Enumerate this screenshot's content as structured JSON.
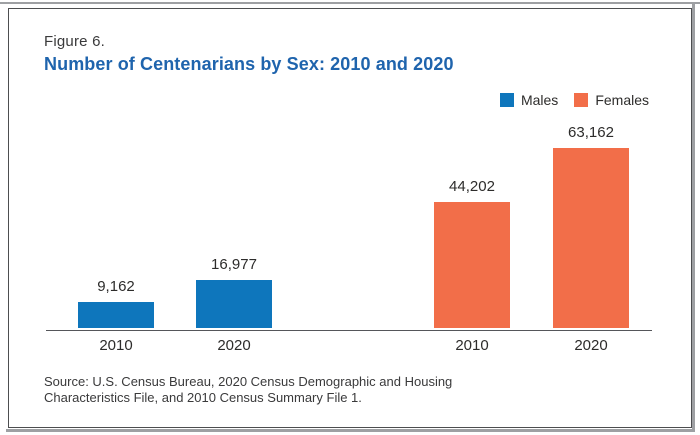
{
  "figure": {
    "label": "Figure 6.",
    "title": "Number of Centenarians by Sex: 2010 and 2020"
  },
  "colors": {
    "title_blue": "#1f64ad",
    "males_blue": "#0e76bc",
    "females_orange": "#f26e49",
    "axis_gray": "#55565a"
  },
  "chart_data": {
    "type": "bar",
    "title": "Number of Centenarians by Sex: 2010 and 2020",
    "ylim": [
      0,
      63162
    ],
    "grid": false,
    "legend_position": "top-right",
    "value_labels_shown": true,
    "groups": [
      {
        "name": "Males",
        "color": "#0e76bc",
        "categories": [
          "2010",
          "2020"
        ],
        "values": [
          9162,
          16977
        ],
        "labels": [
          "9,162",
          "16,977"
        ]
      },
      {
        "name": "Females",
        "color": "#f26e49",
        "categories": [
          "2010",
          "2020"
        ],
        "values": [
          44202,
          63162
        ],
        "labels": [
          "44,202",
          "63,162"
        ]
      }
    ]
  },
  "source_lines": [
    "Source: U.S. Census Bureau, 2020 Census Demographic and Housing",
    "Characteristics File, and 2010 Census Summary File 1."
  ]
}
